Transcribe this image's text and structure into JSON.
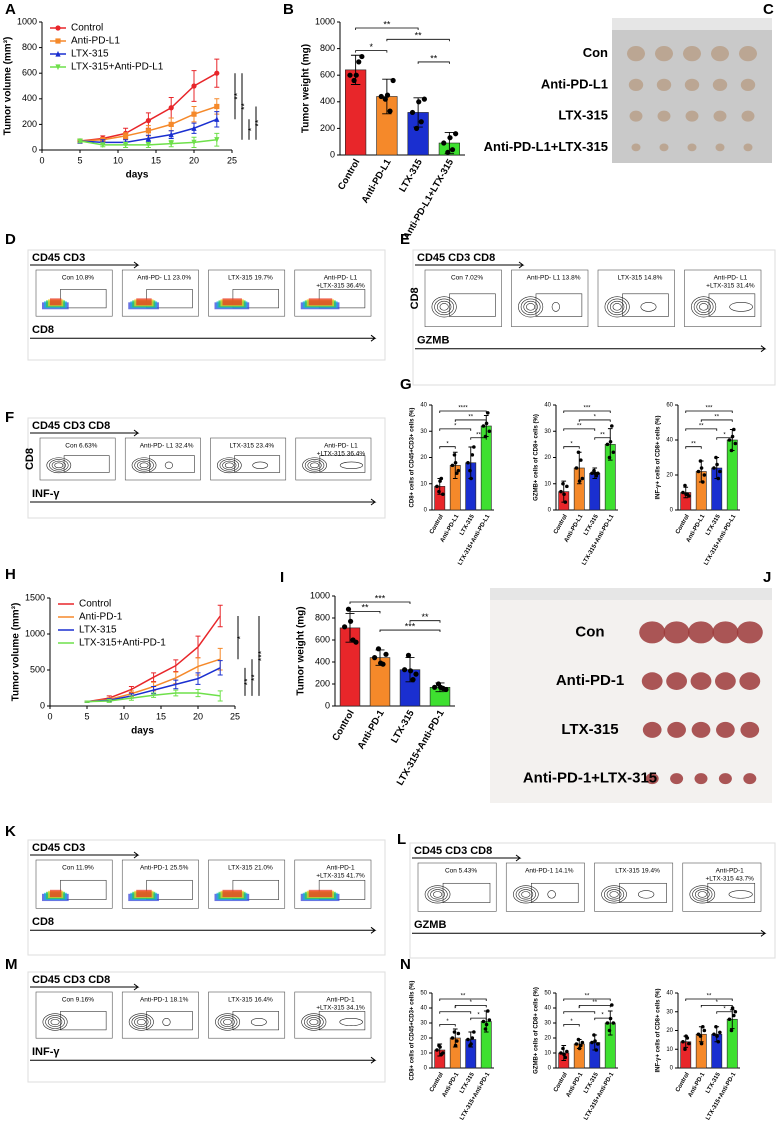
{
  "chart_data": [
    {
      "type": "line",
      "panel_label": "A",
      "xlabel": "days",
      "ylabel": "Tumor volume (mm³)",
      "x": [
        5,
        8,
        11,
        14,
        17,
        20,
        23
      ],
      "xlim": [
        0,
        25
      ],
      "xticks": [
        0,
        5,
        10,
        15,
        20,
        25
      ],
      "ylim": [
        0,
        1000
      ],
      "yticks": [
        0,
        200,
        400,
        600,
        800,
        1000
      ],
      "legend": "upper left",
      "series": [
        {
          "name": "Control",
          "color": "#e8262a",
          "marker": "circle",
          "values": [
            70,
            90,
            130,
            230,
            330,
            500,
            600
          ],
          "errors": [
            10,
            20,
            40,
            60,
            80,
            120,
            110
          ]
        },
        {
          "name": "Anti-PD-L1",
          "color": "#f5892a",
          "marker": "square",
          "values": [
            70,
            80,
            110,
            150,
            200,
            280,
            340
          ],
          "errors": [
            10,
            15,
            25,
            40,
            50,
            60,
            60
          ]
        },
        {
          "name": "LTX-315",
          "color": "#1a2fd0",
          "marker": "triangle",
          "values": [
            70,
            60,
            60,
            90,
            120,
            170,
            240
          ],
          "errors": [
            10,
            20,
            20,
            25,
            30,
            40,
            60
          ]
        },
        {
          "name": "LTX-315+Anti-PD-L1",
          "color": "#6ee04a",
          "marker": "triangle-down",
          "values": [
            70,
            40,
            40,
            40,
            50,
            60,
            80
          ],
          "errors": [
            10,
            15,
            20,
            20,
            25,
            40,
            50
          ]
        }
      ],
      "brackets": [
        {
          "label": "**",
          "from": 0,
          "to": 2
        },
        {
          "label": "**",
          "from": 0,
          "to": 3
        },
        {
          "label": "*",
          "from": 2,
          "to": 3
        },
        {
          "label": "**",
          "from": 1,
          "to": 3
        }
      ]
    },
    {
      "type": "bar",
      "panel_label": "B",
      "ylabel": "Tumor weight (mg)",
      "categories": [
        "Control",
        "Anti-PD-L1",
        "LTX-315",
        "Anti-PD-L1+LTX-315"
      ],
      "colors": [
        "#e8262a",
        "#f5892a",
        "#1a2fd0",
        "#3ee030"
      ],
      "values": [
        640,
        440,
        320,
        90
      ],
      "errors": [
        110,
        130,
        110,
        80
      ],
      "points": [
        [
          600,
          700,
          560,
          740,
          600
        ],
        [
          440,
          330,
          420,
          560,
          450
        ],
        [
          320,
          250,
          200,
          420,
          400
        ],
        [
          90,
          40,
          20,
          160,
          130
        ]
      ],
      "ylim": [
        0,
        1000
      ],
      "yticks": [
        0,
        200,
        400,
        600,
        800,
        1000
      ],
      "brackets": [
        {
          "label": "**",
          "from": 0,
          "to": 2
        },
        {
          "label": "**",
          "from": 1,
          "to": 3
        },
        {
          "label": "*",
          "from": 0,
          "to": 1
        },
        {
          "label": "**",
          "from": 2,
          "to": 3
        }
      ]
    },
    {
      "type": "bar",
      "panel_label": "G",
      "ylabel": "CD8+ cells of CD45+CD3+ cells (%)",
      "categories": [
        "Control",
        "Anti-PD-L1",
        "LTX-315",
        "LTX-315+Anti-PD-L1"
      ],
      "colors": [
        "#e8262a",
        "#f5892a",
        "#1a2fd0",
        "#3ee030"
      ],
      "values": [
        9,
        17,
        18,
        32
      ],
      "errors": [
        3,
        5,
        6,
        4
      ],
      "points": [
        [
          9,
          12,
          7,
          6,
          11
        ],
        [
          17,
          14,
          21,
          15,
          18
        ],
        [
          18,
          21,
          15,
          24,
          12
        ],
        [
          32,
          37,
          28,
          30,
          33
        ]
      ],
      "ylim": [
        0,
        40
      ],
      "yticks": [
        0,
        10,
        20,
        30,
        40
      ],
      "brackets": [
        {
          "label": "****",
          "from": 0,
          "to": 3
        },
        {
          "label": "**",
          "from": 1,
          "to": 3
        },
        {
          "label": "*",
          "from": 0,
          "to": 2
        },
        {
          "label": "**",
          "from": 2,
          "to": 3
        },
        {
          "label": "*",
          "from": 0,
          "to": 1
        }
      ]
    },
    {
      "type": "bar",
      "ylabel": "GZMB+ cells of CD8+ cells (%)",
      "categories": [
        "Control",
        "Anti-PD-L1",
        "LTX-315",
        "LTX-315+Anti-PD-L1"
      ],
      "colors": [
        "#e8262a",
        "#f5892a",
        "#1a2fd0",
        "#3ee030"
      ],
      "values": [
        7,
        16,
        14,
        25
      ],
      "errors": [
        4,
        6,
        2,
        6
      ],
      "points": [
        [
          7,
          3,
          10,
          9,
          6
        ],
        [
          16,
          19,
          22,
          12,
          11
        ],
        [
          14,
          13,
          15,
          14,
          14
        ],
        [
          25,
          32,
          20,
          22,
          26
        ]
      ],
      "ylim": [
        0,
        40
      ],
      "yticks": [
        0,
        10,
        20,
        30,
        40
      ],
      "brackets": [
        {
          "label": "***",
          "from": 0,
          "to": 3
        },
        {
          "label": "*",
          "from": 1,
          "to": 3
        },
        {
          "label": "**",
          "from": 0,
          "to": 2
        },
        {
          "label": "**",
          "from": 2,
          "to": 3
        },
        {
          "label": "*",
          "from": 0,
          "to": 1
        }
      ]
    },
    {
      "type": "bar",
      "ylabel": "INF-γ+ cells of CD8+ cells (%)",
      "categories": [
        "Control",
        "Anti-PD-L1",
        "LTX-315",
        "LTX-315+Anti-PD-L1"
      ],
      "colors": [
        "#e8262a",
        "#f5892a",
        "#1a2fd0",
        "#3ee030"
      ],
      "values": [
        10,
        22,
        24,
        40
      ],
      "errors": [
        3,
        6,
        6,
        6
      ],
      "points": [
        [
          10,
          9,
          14,
          8,
          9
        ],
        [
          22,
          16,
          28,
          20,
          24
        ],
        [
          24,
          18,
          30,
          22,
          26
        ],
        [
          40,
          46,
          34,
          38,
          42
        ]
      ],
      "ylim": [
        0,
        60
      ],
      "yticks": [
        0,
        20,
        40,
        60
      ],
      "brackets": [
        {
          "label": "***",
          "from": 0,
          "to": 3
        },
        {
          "label": "**",
          "from": 1,
          "to": 3
        },
        {
          "label": "**",
          "from": 0,
          "to": 2
        },
        {
          "label": "*",
          "from": 2,
          "to": 3
        },
        {
          "label": "**",
          "from": 0,
          "to": 1
        }
      ]
    },
    {
      "type": "line",
      "panel_label": "H",
      "xlabel": "days",
      "ylabel": "Tumor volume (mm³)",
      "x": [
        5,
        8,
        11,
        14,
        17,
        20,
        23
      ],
      "xlim": [
        0,
        25
      ],
      "xticks": [
        0,
        5,
        10,
        15,
        20,
        25
      ],
      "ylim": [
        0,
        1500
      ],
      "yticks": [
        0,
        500,
        1000,
        1500
      ],
      "legend": "upper left",
      "series": [
        {
          "name": "Control",
          "color": "#e8262a",
          "values": [
            60,
            110,
            230,
            400,
            560,
            820,
            1250
          ],
          "errors": [
            10,
            30,
            40,
            60,
            80,
            150,
            150
          ]
        },
        {
          "name": "Anti-PD-1",
          "color": "#f5892a",
          "values": [
            60,
            90,
            170,
            270,
            390,
            550,
            650
          ],
          "errors": [
            10,
            25,
            40,
            60,
            80,
            120,
            150
          ]
        },
        {
          "name": "LTX-315",
          "color": "#1a2fd0",
          "values": [
            60,
            80,
            140,
            220,
            300,
            380,
            530
          ],
          "errors": [
            10,
            20,
            30,
            50,
            60,
            80,
            100
          ]
        },
        {
          "name": "LTX-315+Anti-PD-1",
          "color": "#6ee04a",
          "values": [
            60,
            70,
            110,
            150,
            180,
            180,
            140
          ],
          "errors": [
            10,
            20,
            30,
            30,
            40,
            50,
            70
          ]
        }
      ],
      "brackets": [
        {
          "label": "*",
          "from": 0,
          "to": 1
        },
        {
          "label": "**",
          "from": 2,
          "to": 3
        },
        {
          "label": "**",
          "from": 1,
          "to": 3
        },
        {
          "label": "***",
          "from": 0,
          "to": 3
        }
      ]
    },
    {
      "type": "bar",
      "panel_label": "I",
      "ylabel": "Tumor weight (mg)",
      "categories": [
        "Control",
        "Anti-PD-1",
        "LTX-315",
        "LTX-315+Anti-PD-1"
      ],
      "colors": [
        "#e8262a",
        "#f5892a",
        "#1a2fd0",
        "#3ee030"
      ],
      "values": [
        710,
        440,
        330,
        170
      ],
      "errors": [
        130,
        70,
        110,
        40
      ],
      "points": [
        [
          720,
          600,
          880,
          580,
          770
        ],
        [
          440,
          380,
          520,
          470,
          390
        ],
        [
          330,
          240,
          460,
          290,
          320
        ],
        [
          170,
          160,
          200,
          150,
          170
        ]
      ],
      "ylim": [
        0,
        1000
      ],
      "yticks": [
        0,
        200,
        400,
        600,
        800,
        1000
      ],
      "brackets": [
        {
          "label": "***",
          "from": 0,
          "to": 2
        },
        {
          "label": "**",
          "from": 0,
          "to": 1
        },
        {
          "label": "**",
          "from": 2,
          "to": 3
        },
        {
          "label": "***",
          "from": 1,
          "to": 3
        }
      ]
    },
    {
      "type": "bar",
      "panel_label": "N",
      "ylabel": "CD8+ cells of CD45+CD3+ cells (%)",
      "categories": [
        "Control",
        "Anti-PD-1",
        "LTX-315",
        "LTX-315+Anti-PD-1"
      ],
      "colors": [
        "#e8262a",
        "#f5892a",
        "#1a2fd0",
        "#3ee030"
      ],
      "values": [
        12,
        20,
        19,
        31
      ],
      "errors": [
        4,
        6,
        5,
        7
      ],
      "points": [
        [
          12,
          9,
          15,
          10,
          14
        ],
        [
          20,
          18,
          24,
          23,
          15
        ],
        [
          19,
          20,
          15,
          24,
          16
        ],
        [
          31,
          38,
          26,
          32,
          29
        ]
      ],
      "ylim": [
        0,
        50
      ],
      "yticks": [
        0,
        10,
        20,
        30,
        40,
        50
      ],
      "brackets": [
        {
          "label": "**",
          "from": 0,
          "to": 3
        },
        {
          "label": "*",
          "from": 1,
          "to": 3
        },
        {
          "label": "*",
          "from": 0,
          "to": 2
        },
        {
          "label": "*",
          "from": 2,
          "to": 3
        },
        {
          "label": "*",
          "from": 0,
          "to": 1
        }
      ]
    },
    {
      "type": "bar",
      "ylabel": "GZMB+ cells of CD8+ cells (%)",
      "categories": [
        "Control",
        "Anti-PD-1",
        "LTX-315",
        "LTX-315+Anti-PD-1"
      ],
      "colors": [
        "#e8262a",
        "#f5892a",
        "#1a2fd0",
        "#3ee030"
      ],
      "values": [
        10,
        16,
        17,
        30
      ],
      "errors": [
        5,
        3,
        5,
        8
      ],
      "points": [
        [
          10,
          7,
          13,
          11,
          9
        ],
        [
          16,
          15,
          19,
          17,
          13
        ],
        [
          17,
          12,
          22,
          16,
          18
        ],
        [
          30,
          42,
          25,
          30,
          33
        ]
      ],
      "ylim": [
        0,
        50
      ],
      "yticks": [
        0,
        10,
        20,
        30,
        40,
        50
      ],
      "brackets": [
        {
          "label": "**",
          "from": 0,
          "to": 3
        },
        {
          "label": "**",
          "from": 1,
          "to": 3
        },
        {
          "label": "*",
          "from": 0,
          "to": 2
        },
        {
          "label": "*",
          "from": 2,
          "to": 3
        },
        {
          "label": "*",
          "from": 0,
          "to": 1
        }
      ]
    },
    {
      "type": "bar",
      "ylabel": "INF-γ+ cells of CD8+ cells (%)",
      "categories": [
        "Control",
        "Anti-PD-1",
        "LTX-315",
        "LTX-315+Anti-PD-1"
      ],
      "colors": [
        "#e8262a",
        "#f5892a",
        "#1a2fd0",
        "#3ee030"
      ],
      "values": [
        14,
        18,
        18,
        26
      ],
      "errors": [
        3,
        4,
        4,
        5
      ],
      "points": [
        [
          14,
          16,
          10,
          13,
          17
        ],
        [
          18,
          22,
          17,
          20,
          13
        ],
        [
          18,
          14,
          22,
          19,
          17
        ],
        [
          26,
          28,
          20,
          30,
          32
        ]
      ],
      "ylim": [
        0,
        40
      ],
      "yticks": [
        0,
        10,
        20,
        30,
        40
      ],
      "brackets": [
        {
          "label": "**",
          "from": 0,
          "to": 3
        },
        {
          "label": "*",
          "from": 1,
          "to": 3
        },
        {
          "label": "*",
          "from": 2,
          "to": 3
        }
      ]
    }
  ],
  "photos": [
    {
      "panel_label": "C",
      "rows": [
        "Con",
        "Anti-PD-L1",
        "LTX-315",
        "Anti-PD-L1+LTX-315"
      ]
    },
    {
      "panel_label": "J",
      "rows": [
        "Con",
        "Anti-PD-1",
        "LTX-315",
        "Anti-PD-1+LTX-315"
      ]
    }
  ],
  "flow": [
    {
      "panel_label": "D",
      "gate": "CD45 CD3",
      "xlabel": "CD8",
      "plot_style": "dots",
      "plots": [
        [
          "Con 10.8%"
        ],
        [
          "Anti-PD- L1 23.0%"
        ],
        [
          "LTX-315 19.7%"
        ],
        [
          "Anti-PD- L1",
          "+LTX-315 36.4%"
        ]
      ]
    },
    {
      "panel_label": "E",
      "gate": "CD45 CD3 CD8",
      "ylabel": "CD8",
      "xlabel": "GZMB",
      "plot_style": "contour",
      "plots": [
        [
          "Con 7.02%"
        ],
        [
          "Anti-PD- L1 13.8%"
        ],
        [
          "LTX-315 14.8%"
        ],
        [
          "Anti-PD- L1",
          "+LTX-315 31.4%"
        ]
      ]
    },
    {
      "panel_label": "F",
      "gate": "CD45 CD3 CD8",
      "ylabel": "CD8",
      "xlabel": "INF-γ",
      "plot_style": "contour",
      "plots": [
        [
          "Con 6.63%"
        ],
        [
          "Anti-PD- L1 32.4%"
        ],
        [
          "LTX-315 23.4%"
        ],
        [
          "Anti-PD- L1",
          "+LTX-315 36.4%"
        ]
      ]
    },
    {
      "panel_label": "K",
      "gate": "CD45 CD3",
      "xlabel": "CD8",
      "plot_style": "dots",
      "plots": [
        [
          "Con 11.9%"
        ],
        [
          "Anti-PD-1 25.5%"
        ],
        [
          "LTX-315 21.0%"
        ],
        [
          "Anti-PD-1",
          "+LTX-315 41.7%"
        ]
      ]
    },
    {
      "panel_label": "L",
      "gate": "CD45 CD3 CD8",
      "xlabel": "GZMB",
      "plot_style": "contour",
      "plots": [
        [
          "Con 5.43%"
        ],
        [
          "Anti-PD-1 14.1%"
        ],
        [
          "LTX-315 19.4%"
        ],
        [
          "Anti-PD-1",
          "+LTX-315 43.7%"
        ]
      ]
    },
    {
      "panel_label": "M",
      "gate": "CD45 CD3 CD8",
      "xlabel": "INF-γ",
      "plot_style": "contour",
      "plots": [
        [
          "Con 9.16%"
        ],
        [
          "Anti-PD-1 18.1%"
        ],
        [
          "LTX-315 16.4%"
        ],
        [
          "Anti-PD-1",
          "+LTX-315 34.1%"
        ]
      ]
    }
  ]
}
